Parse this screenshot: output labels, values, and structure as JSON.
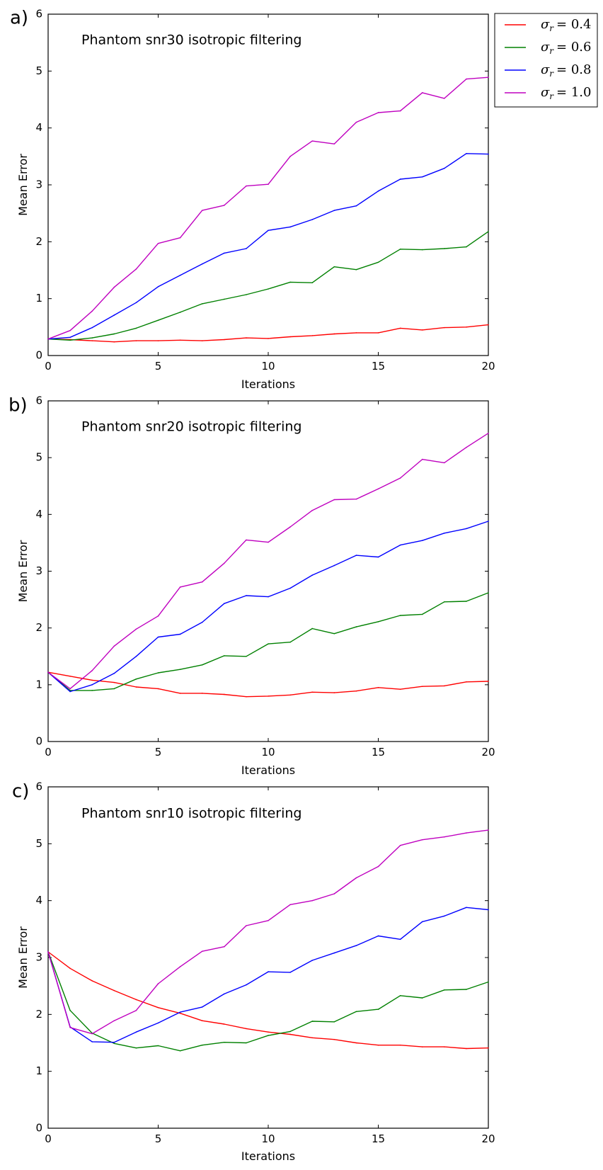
{
  "figure": {
    "legend": {
      "entries": [
        {
          "label": "σ_r = 0.4",
          "sym": "σ",
          "sub": "r",
          "eq": "= 0.4",
          "color": "#ff0000"
        },
        {
          "label": "σ_r = 0.6",
          "sym": "σ",
          "sub": "r",
          "eq": "= 0.6",
          "color": "#008000"
        },
        {
          "label": "σ_r = 0.8",
          "sym": "σ",
          "sub": "r",
          "eq": "= 0.8",
          "color": "#0000ff"
        },
        {
          "label": "σ_r = 1.0",
          "sym": "σ",
          "sub": "r",
          "eq": "= 1.0",
          "color": "#bf00bf"
        }
      ],
      "placement": "top-right outside"
    }
  },
  "chart_data": [
    {
      "type": "line",
      "panel_label": "a)",
      "title": "Phantom snr30 isotropic filtering",
      "xlabel": "Iterations",
      "ylabel": "Mean Error",
      "xlim": [
        0,
        20
      ],
      "ylim": [
        0,
        6
      ],
      "xticks": [
        "0",
        "5",
        "10",
        "15",
        "20"
      ],
      "yticks": [
        "0",
        "1",
        "2",
        "3",
        "4",
        "5",
        "6"
      ],
      "x": [
        0,
        1,
        2,
        3,
        4,
        5,
        6,
        7,
        8,
        9,
        10,
        11,
        12,
        13,
        14,
        15,
        16,
        17,
        18,
        19,
        20
      ],
      "series": [
        {
          "name": "σ_r = 0.4",
          "color": "#ff0000",
          "values": [
            0.29,
            0.28,
            0.26,
            0.24,
            0.26,
            0.26,
            0.27,
            0.26,
            0.28,
            0.31,
            0.3,
            0.33,
            0.35,
            0.38,
            0.4,
            0.4,
            0.48,
            0.45,
            0.49,
            0.5,
            0.54
          ]
        },
        {
          "name": "σ_r = 0.6",
          "color": "#008000",
          "values": [
            0.29,
            0.27,
            0.31,
            0.38,
            0.48,
            0.62,
            0.76,
            0.91,
            0.99,
            1.07,
            1.17,
            1.29,
            1.28,
            1.56,
            1.51,
            1.64,
            1.87,
            1.86,
            1.88,
            1.91,
            2.18
          ]
        },
        {
          "name": "σ_r = 0.8",
          "color": "#0000ff",
          "values": [
            0.29,
            0.32,
            0.49,
            0.71,
            0.93,
            1.21,
            1.41,
            1.61,
            1.8,
            1.88,
            2.2,
            2.26,
            2.39,
            2.55,
            2.63,
            2.89,
            3.1,
            3.14,
            3.29,
            3.55,
            3.54
          ]
        },
        {
          "name": "σ_r = 1.0",
          "color": "#bf00bf",
          "values": [
            0.29,
            0.44,
            0.78,
            1.2,
            1.52,
            1.97,
            2.07,
            2.55,
            2.64,
            2.98,
            3.01,
            3.5,
            3.77,
            3.72,
            4.1,
            4.27,
            4.3,
            4.62,
            4.52,
            4.86,
            4.89
          ]
        }
      ]
    },
    {
      "type": "line",
      "panel_label": "b)",
      "title": "Phantom snr20 isotropic filtering",
      "xlabel": "Iterations",
      "ylabel": "Mean Error",
      "xlim": [
        0,
        20
      ],
      "ylim": [
        0,
        6
      ],
      "xticks": [
        "0",
        "5",
        "10",
        "15",
        "20"
      ],
      "yticks": [
        "0",
        "1",
        "2",
        "3",
        "4",
        "5",
        "6"
      ],
      "x": [
        0,
        1,
        2,
        3,
        4,
        5,
        6,
        7,
        8,
        9,
        10,
        11,
        12,
        13,
        14,
        15,
        16,
        17,
        18,
        19,
        20
      ],
      "series": [
        {
          "name": "σ_r = 0.4",
          "color": "#ff0000",
          "values": [
            1.22,
            1.15,
            1.08,
            1.04,
            0.96,
            0.93,
            0.85,
            0.85,
            0.83,
            0.79,
            0.8,
            0.82,
            0.87,
            0.86,
            0.89,
            0.95,
            0.92,
            0.97,
            0.98,
            1.05,
            1.06
          ]
        },
        {
          "name": "σ_r = 0.6",
          "color": "#008000",
          "values": [
            1.22,
            0.9,
            0.9,
            0.93,
            1.1,
            1.21,
            1.27,
            1.35,
            1.51,
            1.5,
            1.72,
            1.75,
            1.99,
            1.9,
            2.02,
            2.11,
            2.22,
            2.24,
            2.46,
            2.47,
            2.62
          ]
        },
        {
          "name": "σ_r = 0.8",
          "color": "#0000ff",
          "values": [
            1.22,
            0.88,
            1.0,
            1.2,
            1.5,
            1.84,
            1.89,
            2.1,
            2.43,
            2.57,
            2.55,
            2.7,
            2.93,
            3.1,
            3.28,
            3.25,
            3.46,
            3.54,
            3.67,
            3.75,
            3.88
          ]
        },
        {
          "name": "σ_r = 1.0",
          "color": "#bf00bf",
          "values": [
            1.22,
            0.93,
            1.25,
            1.68,
            1.98,
            2.21,
            2.72,
            2.81,
            3.14,
            3.55,
            3.51,
            3.78,
            4.07,
            4.26,
            4.27,
            4.45,
            4.64,
            4.97,
            4.91,
            5.18,
            5.43
          ]
        }
      ]
    },
    {
      "type": "line",
      "panel_label": "c)",
      "title": "Phantom snr10 isotropic filtering",
      "xlabel": "Iterations",
      "ylabel": "Mean Error",
      "xlim": [
        0,
        20
      ],
      "ylim": [
        0,
        6
      ],
      "xticks": [
        "0",
        "5",
        "10",
        "15",
        "20"
      ],
      "yticks": [
        "0",
        "1",
        "2",
        "3",
        "4",
        "5",
        "6"
      ],
      "x": [
        0,
        1,
        2,
        3,
        4,
        5,
        6,
        7,
        8,
        9,
        10,
        11,
        12,
        13,
        14,
        15,
        16,
        17,
        18,
        19,
        20
      ],
      "series": [
        {
          "name": "σ_r = 0.4",
          "color": "#ff0000",
          "values": [
            3.1,
            2.81,
            2.59,
            2.42,
            2.26,
            2.12,
            2.02,
            1.89,
            1.83,
            1.75,
            1.69,
            1.65,
            1.59,
            1.56,
            1.5,
            1.46,
            1.46,
            1.43,
            1.43,
            1.4,
            1.41
          ]
        },
        {
          "name": "σ_r = 0.6",
          "color": "#008000",
          "values": [
            3.1,
            2.07,
            1.67,
            1.49,
            1.41,
            1.45,
            1.36,
            1.46,
            1.51,
            1.5,
            1.63,
            1.7,
            1.88,
            1.87,
            2.05,
            2.09,
            2.33,
            2.29,
            2.43,
            2.44,
            2.57
          ]
        },
        {
          "name": "σ_r = 0.8",
          "color": "#0000ff",
          "values": [
            3.1,
            1.78,
            1.52,
            1.51,
            1.69,
            1.85,
            2.04,
            2.13,
            2.36,
            2.52,
            2.75,
            2.74,
            2.95,
            3.08,
            3.21,
            3.38,
            3.32,
            3.63,
            3.73,
            3.88,
            3.84
          ]
        },
        {
          "name": "σ_r = 1.0",
          "color": "#bf00bf",
          "values": [
            3.1,
            1.77,
            1.66,
            1.89,
            2.07,
            2.54,
            2.84,
            3.11,
            3.19,
            3.56,
            3.65,
            3.93,
            4.0,
            4.12,
            4.4,
            4.6,
            4.97,
            5.07,
            5.12,
            5.19,
            5.24
          ]
        }
      ]
    }
  ]
}
